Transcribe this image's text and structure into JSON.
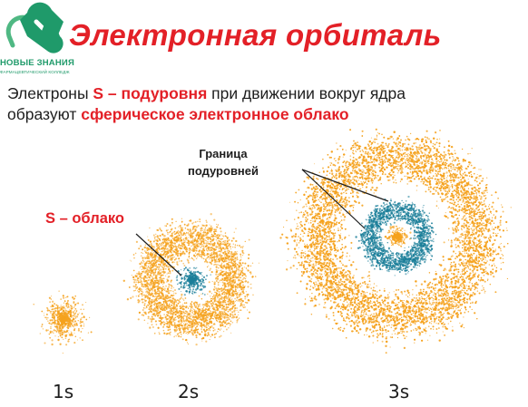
{
  "logo": {
    "name": "НОВЫЕ ЗНАНИЯ",
    "subtitle": "ФАРМАЦЕВТИЧЕСКИЙ КОЛЛЕДЖ",
    "colors": {
      "green": "#1f9a6a",
      "light_green": "#4fb883"
    },
    "icon": "pill-capsule-icon"
  },
  "title": "Электронная орбиталь",
  "description": {
    "line1_before": "Электроны ",
    "line1_highlight": "S – подуровня",
    "line1_after": " при движении вокруг ядра",
    "line2_before": "образуют ",
    "line2_highlight": "сферическое электронное облако"
  },
  "labels": {
    "boundary_line1": "Граница",
    "boundary_line2": "подуровней",
    "s_cloud": "S – облако"
  },
  "orbitals": [
    {
      "label": "1s",
      "layers": [
        "orange"
      ]
    },
    {
      "label": "2s",
      "layers": [
        "orange",
        "teal"
      ]
    },
    {
      "label": "3s",
      "layers": [
        "orange",
        "teal",
        "orange"
      ]
    }
  ],
  "colors": {
    "orange": "#f5a21e",
    "teal": "#1c7f9a",
    "title_red": "#e32027",
    "text": "#1e1e1e"
  }
}
